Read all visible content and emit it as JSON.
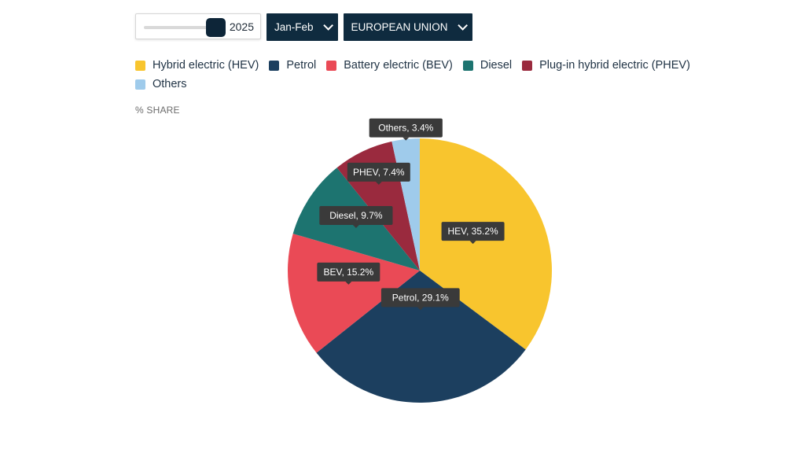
{
  "controls": {
    "year": "2025",
    "period": "Jan-Feb",
    "region": "EUROPEAN UNION"
  },
  "legend": [
    {
      "label": "Hybrid electric (HEV)",
      "color": "#f8c52e"
    },
    {
      "label": "Petrol",
      "color": "#1c3f5f"
    },
    {
      "label": "Battery electric (BEV)",
      "color": "#ea4a56"
    },
    {
      "label": "Diesel",
      "color": "#1d7470"
    },
    {
      "label": "Plug-in hybrid electric (PHEV)",
      "color": "#9a2a3e"
    },
    {
      "label": "Others",
      "color": "#9fcbeb"
    }
  ],
  "axis_note": "% SHARE",
  "chart_data": {
    "type": "pie",
    "unit": "%",
    "slices": [
      {
        "name": "HEV",
        "value": 35.2,
        "color": "#f8c52e",
        "label": "HEV, 35.2%"
      },
      {
        "name": "Petrol",
        "value": 29.1,
        "color": "#1c3f5f",
        "label": "Petrol, 29.1%"
      },
      {
        "name": "BEV",
        "value": 15.2,
        "color": "#ea4a56",
        "label": "BEV, 15.2%"
      },
      {
        "name": "Diesel",
        "value": 9.7,
        "color": "#1d7470",
        "label": "Diesel, 9.7%"
      },
      {
        "name": "PHEV",
        "value": 7.4,
        "color": "#9a2a3e",
        "label": "PHEV, 7.4%"
      },
      {
        "name": "Others",
        "value": 3.4,
        "color": "#9fcbeb",
        "label": "Others, 3.4%"
      }
    ]
  }
}
